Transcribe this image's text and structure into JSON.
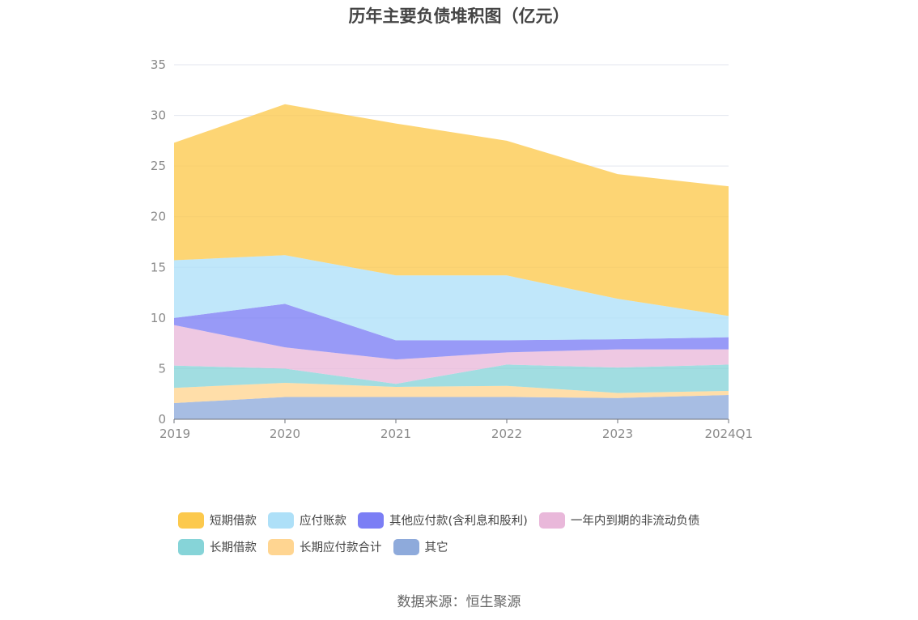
{
  "title": "历年主要负债堆积图（亿元）",
  "source": "数据来源：恒生聚源",
  "chart_data": {
    "type": "area",
    "stacked": true,
    "title": "历年主要负债堆积图（亿元）",
    "xlabel": "",
    "ylabel": "",
    "categories": [
      "2019",
      "2020",
      "2021",
      "2022",
      "2023",
      "2024Q1"
    ],
    "ylim": [
      0,
      35
    ],
    "yticks": [
      0,
      5,
      10,
      15,
      20,
      25,
      30,
      35
    ],
    "grid": true,
    "legend_position": "bottom",
    "series": [
      {
        "name": "其它",
        "color": "#8eaadb",
        "values": [
          1.6,
          2.2,
          2.2,
          2.2,
          2.1,
          2.4
        ]
      },
      {
        "name": "长期应付款合计",
        "color": "#ffd591",
        "values": [
          1.5,
          1.4,
          1.0,
          1.1,
          0.5,
          0.4
        ]
      },
      {
        "name": "长期借款",
        "color": "#86d4d8",
        "values": [
          2.2,
          1.4,
          0.3,
          2.1,
          2.5,
          2.6
        ]
      },
      {
        "name": "一年内到期的非流动负债",
        "color": "#e9b8da",
        "values": [
          4.0,
          2.1,
          2.4,
          1.2,
          1.8,
          1.5
        ]
      },
      {
        "name": "其他应付款(含利息和股利)",
        "color": "#7b7ef5",
        "values": [
          0.7,
          4.3,
          1.9,
          1.2,
          1.0,
          1.2
        ]
      },
      {
        "name": "应付账款",
        "color": "#aee0f8",
        "values": [
          5.7,
          4.8,
          6.4,
          6.4,
          4.0,
          2.1
        ]
      },
      {
        "name": "短期借款",
        "color": "#fcc94d",
        "values": [
          11.6,
          14.9,
          15.0,
          13.3,
          12.3,
          12.8
        ]
      }
    ],
    "legend_order": [
      "短期借款",
      "应付账款",
      "其他应付款(含利息和股利)",
      "一年内到期的非流动负债",
      "长期借款",
      "长期应付款合计",
      "其它"
    ]
  }
}
